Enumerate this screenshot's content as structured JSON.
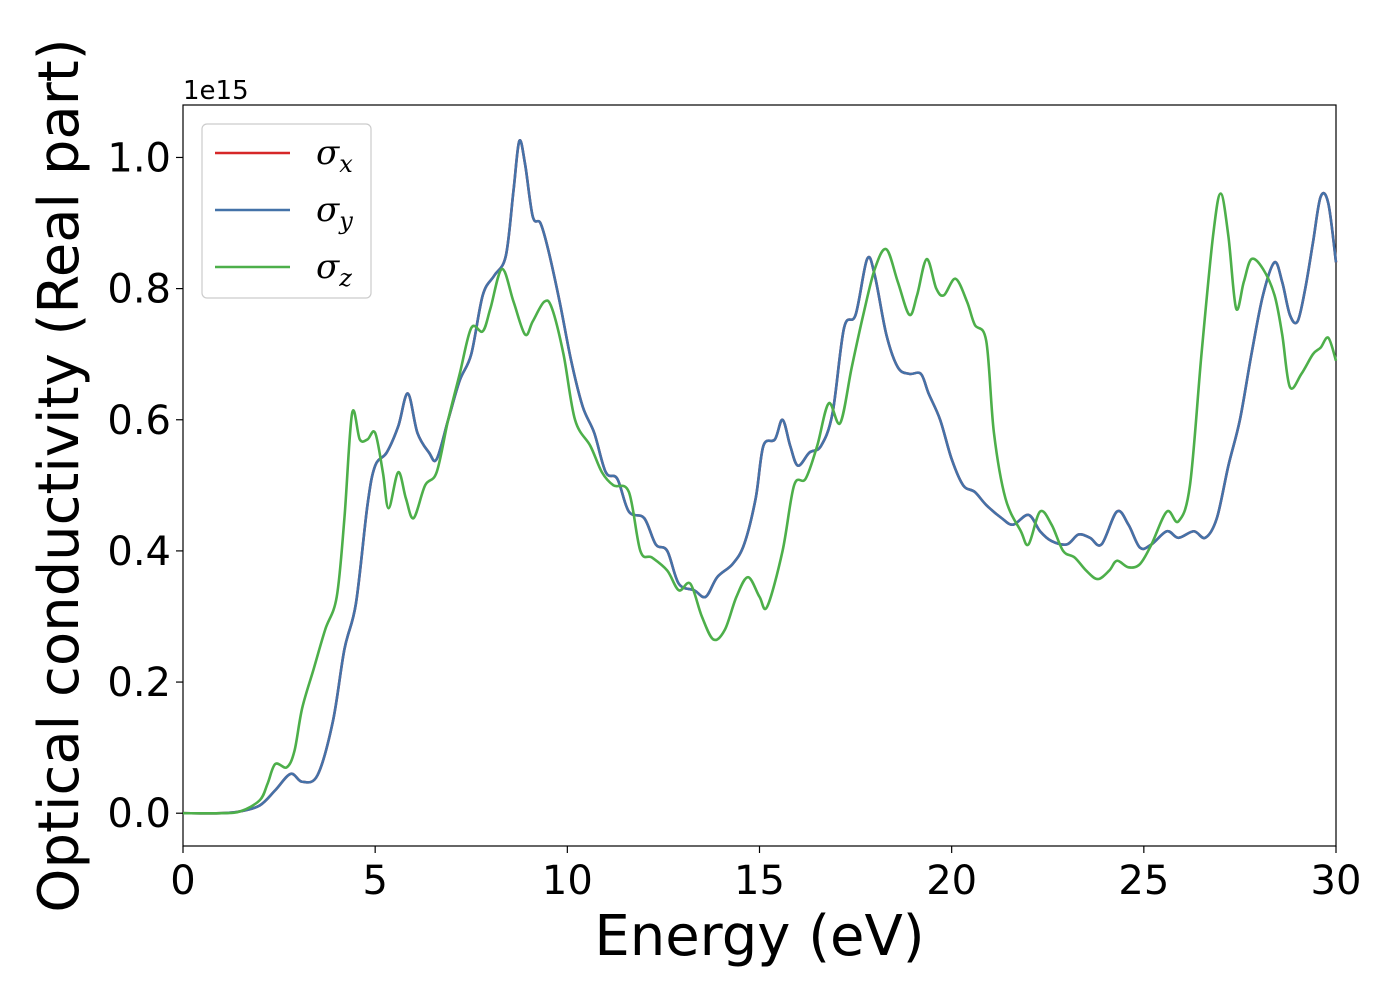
{
  "chart_data": {
    "type": "line",
    "title": "",
    "xlabel": "Energy (eV)",
    "ylabel": "Optical conductivity (Real part)",
    "y_offset_label": "1e15",
    "xlim": [
      0,
      30
    ],
    "ylim": [
      -0.05,
      1.08
    ],
    "x_ticks": [
      0,
      5,
      10,
      15,
      20,
      25,
      30
    ],
    "x_tick_labels": [
      "0",
      "5",
      "10",
      "15",
      "20",
      "25",
      "30"
    ],
    "y_ticks": [
      0.0,
      0.2,
      0.4,
      0.6,
      0.8,
      1.0
    ],
    "y_tick_labels": [
      "0.0",
      "0.2",
      "0.4",
      "0.6",
      "0.8",
      "1.0"
    ],
    "grid": false,
    "legend_position": "top-left",
    "series": [
      {
        "name": "σx",
        "symbol": "σ",
        "subscript": "x",
        "color": "#d62728",
        "points": [
          [
            0,
            0
          ],
          [
            1,
            0
          ],
          [
            1.5,
            0.003
          ],
          [
            2,
            0.012
          ],
          [
            2.4,
            0.035
          ],
          [
            2.8,
            0.06
          ],
          [
            3.1,
            0.048
          ],
          [
            3.5,
            0.058
          ],
          [
            3.9,
            0.14
          ],
          [
            4.2,
            0.25
          ],
          [
            4.5,
            0.32
          ],
          [
            4.8,
            0.47
          ],
          [
            5,
            0.53
          ],
          [
            5.3,
            0.55
          ],
          [
            5.6,
            0.59
          ],
          [
            5.85,
            0.64
          ],
          [
            6.1,
            0.58
          ],
          [
            6.4,
            0.55
          ],
          [
            6.6,
            0.54
          ],
          [
            6.9,
            0.6
          ],
          [
            7.2,
            0.66
          ],
          [
            7.5,
            0.7
          ],
          [
            7.8,
            0.79
          ],
          [
            8.1,
            0.82
          ],
          [
            8.4,
            0.85
          ],
          [
            8.6,
            0.95
          ],
          [
            8.75,
            1.025
          ],
          [
            8.9,
            0.99
          ],
          [
            9.1,
            0.91
          ],
          [
            9.3,
            0.9
          ],
          [
            9.5,
            0.86
          ],
          [
            9.8,
            0.78
          ],
          [
            10.1,
            0.69
          ],
          [
            10.4,
            0.62
          ],
          [
            10.7,
            0.58
          ],
          [
            11,
            0.52
          ],
          [
            11.3,
            0.51
          ],
          [
            11.6,
            0.46
          ],
          [
            12,
            0.45
          ],
          [
            12.3,
            0.41
          ],
          [
            12.6,
            0.4
          ],
          [
            12.9,
            0.35
          ],
          [
            13.3,
            0.34
          ],
          [
            13.6,
            0.33
          ],
          [
            13.9,
            0.36
          ],
          [
            14.3,
            0.38
          ],
          [
            14.6,
            0.41
          ],
          [
            14.9,
            0.48
          ],
          [
            15.1,
            0.56
          ],
          [
            15.4,
            0.57
          ],
          [
            15.6,
            0.6
          ],
          [
            15.8,
            0.56
          ],
          [
            16,
            0.53
          ],
          [
            16.3,
            0.55
          ],
          [
            16.6,
            0.56
          ],
          [
            16.9,
            0.61
          ],
          [
            17.2,
            0.74
          ],
          [
            17.5,
            0.76
          ],
          [
            17.8,
            0.845
          ],
          [
            18,
            0.82
          ],
          [
            18.3,
            0.73
          ],
          [
            18.6,
            0.68
          ],
          [
            18.9,
            0.67
          ],
          [
            19.2,
            0.67
          ],
          [
            19.4,
            0.64
          ],
          [
            19.7,
            0.6
          ],
          [
            20,
            0.54
          ],
          [
            20.3,
            0.5
          ],
          [
            20.6,
            0.49
          ],
          [
            20.9,
            0.47
          ],
          [
            21.3,
            0.45
          ],
          [
            21.6,
            0.44
          ],
          [
            22,
            0.455
          ],
          [
            22.3,
            0.43
          ],
          [
            22.6,
            0.415
          ],
          [
            23,
            0.41
          ],
          [
            23.3,
            0.425
          ],
          [
            23.6,
            0.42
          ],
          [
            23.9,
            0.41
          ],
          [
            24.3,
            0.46
          ],
          [
            24.6,
            0.44
          ],
          [
            24.9,
            0.405
          ],
          [
            25.2,
            0.41
          ],
          [
            25.6,
            0.43
          ],
          [
            25.9,
            0.42
          ],
          [
            26.3,
            0.43
          ],
          [
            26.6,
            0.42
          ],
          [
            26.9,
            0.45
          ],
          [
            27.2,
            0.53
          ],
          [
            27.5,
            0.6
          ],
          [
            27.8,
            0.7
          ],
          [
            28.1,
            0.79
          ],
          [
            28.4,
            0.84
          ],
          [
            28.6,
            0.81
          ],
          [
            28.8,
            0.76
          ],
          [
            29,
            0.75
          ],
          [
            29.2,
            0.8
          ],
          [
            29.4,
            0.87
          ],
          [
            29.6,
            0.94
          ],
          [
            29.8,
            0.93
          ],
          [
            30,
            0.84
          ]
        ]
      },
      {
        "name": "σy",
        "symbol": "σ",
        "subscript": "y",
        "color": "#4472a8",
        "points": [
          [
            0,
            0
          ],
          [
            1,
            0
          ],
          [
            1.5,
            0.003
          ],
          [
            2,
            0.012
          ],
          [
            2.4,
            0.035
          ],
          [
            2.8,
            0.06
          ],
          [
            3.1,
            0.048
          ],
          [
            3.5,
            0.058
          ],
          [
            3.9,
            0.14
          ],
          [
            4.2,
            0.25
          ],
          [
            4.5,
            0.32
          ],
          [
            4.8,
            0.47
          ],
          [
            5,
            0.53
          ],
          [
            5.3,
            0.55
          ],
          [
            5.6,
            0.59
          ],
          [
            5.85,
            0.64
          ],
          [
            6.1,
            0.58
          ],
          [
            6.4,
            0.55
          ],
          [
            6.6,
            0.54
          ],
          [
            6.9,
            0.6
          ],
          [
            7.2,
            0.66
          ],
          [
            7.5,
            0.7
          ],
          [
            7.8,
            0.79
          ],
          [
            8.1,
            0.82
          ],
          [
            8.4,
            0.85
          ],
          [
            8.6,
            0.95
          ],
          [
            8.75,
            1.025
          ],
          [
            8.9,
            0.99
          ],
          [
            9.1,
            0.91
          ],
          [
            9.3,
            0.9
          ],
          [
            9.5,
            0.86
          ],
          [
            9.8,
            0.78
          ],
          [
            10.1,
            0.69
          ],
          [
            10.4,
            0.62
          ],
          [
            10.7,
            0.58
          ],
          [
            11,
            0.52
          ],
          [
            11.3,
            0.51
          ],
          [
            11.6,
            0.46
          ],
          [
            12,
            0.45
          ],
          [
            12.3,
            0.41
          ],
          [
            12.6,
            0.4
          ],
          [
            12.9,
            0.35
          ],
          [
            13.3,
            0.34
          ],
          [
            13.6,
            0.33
          ],
          [
            13.9,
            0.36
          ],
          [
            14.3,
            0.38
          ],
          [
            14.6,
            0.41
          ],
          [
            14.9,
            0.48
          ],
          [
            15.1,
            0.56
          ],
          [
            15.4,
            0.57
          ],
          [
            15.6,
            0.6
          ],
          [
            15.8,
            0.56
          ],
          [
            16,
            0.53
          ],
          [
            16.3,
            0.55
          ],
          [
            16.6,
            0.56
          ],
          [
            16.9,
            0.61
          ],
          [
            17.2,
            0.74
          ],
          [
            17.5,
            0.76
          ],
          [
            17.8,
            0.845
          ],
          [
            18,
            0.82
          ],
          [
            18.3,
            0.73
          ],
          [
            18.6,
            0.68
          ],
          [
            18.9,
            0.67
          ],
          [
            19.2,
            0.67
          ],
          [
            19.4,
            0.64
          ],
          [
            19.7,
            0.6
          ],
          [
            20,
            0.54
          ],
          [
            20.3,
            0.5
          ],
          [
            20.6,
            0.49
          ],
          [
            20.9,
            0.47
          ],
          [
            21.3,
            0.45
          ],
          [
            21.6,
            0.44
          ],
          [
            22,
            0.455
          ],
          [
            22.3,
            0.43
          ],
          [
            22.6,
            0.415
          ],
          [
            23,
            0.41
          ],
          [
            23.3,
            0.425
          ],
          [
            23.6,
            0.42
          ],
          [
            23.9,
            0.41
          ],
          [
            24.3,
            0.46
          ],
          [
            24.6,
            0.44
          ],
          [
            24.9,
            0.405
          ],
          [
            25.2,
            0.41
          ],
          [
            25.6,
            0.43
          ],
          [
            25.9,
            0.42
          ],
          [
            26.3,
            0.43
          ],
          [
            26.6,
            0.42
          ],
          [
            26.9,
            0.45
          ],
          [
            27.2,
            0.53
          ],
          [
            27.5,
            0.6
          ],
          [
            27.8,
            0.7
          ],
          [
            28.1,
            0.79
          ],
          [
            28.4,
            0.84
          ],
          [
            28.6,
            0.81
          ],
          [
            28.8,
            0.76
          ],
          [
            29,
            0.75
          ],
          [
            29.2,
            0.8
          ],
          [
            29.4,
            0.87
          ],
          [
            29.6,
            0.94
          ],
          [
            29.8,
            0.93
          ],
          [
            30,
            0.84
          ]
        ]
      },
      {
        "name": "σz",
        "symbol": "σ",
        "subscript": "z",
        "color": "#4daf4a",
        "points": [
          [
            0,
            0
          ],
          [
            1,
            0
          ],
          [
            1.5,
            0.003
          ],
          [
            2,
            0.02
          ],
          [
            2.2,
            0.045
          ],
          [
            2.4,
            0.075
          ],
          [
            2.7,
            0.07
          ],
          [
            2.9,
            0.095
          ],
          [
            3.1,
            0.16
          ],
          [
            3.4,
            0.22
          ],
          [
            3.7,
            0.28
          ],
          [
            4,
            0.33
          ],
          [
            4.2,
            0.45
          ],
          [
            4.4,
            0.61
          ],
          [
            4.6,
            0.57
          ],
          [
            4.8,
            0.57
          ],
          [
            5,
            0.58
          ],
          [
            5.2,
            0.52
          ],
          [
            5.35,
            0.465
          ],
          [
            5.6,
            0.52
          ],
          [
            5.8,
            0.48
          ],
          [
            6,
            0.45
          ],
          [
            6.3,
            0.5
          ],
          [
            6.6,
            0.52
          ],
          [
            6.9,
            0.6
          ],
          [
            7.2,
            0.67
          ],
          [
            7.5,
            0.74
          ],
          [
            7.8,
            0.735
          ],
          [
            8,
            0.77
          ],
          [
            8.3,
            0.83
          ],
          [
            8.6,
            0.78
          ],
          [
            8.9,
            0.73
          ],
          [
            9.1,
            0.75
          ],
          [
            9.4,
            0.78
          ],
          [
            9.6,
            0.77
          ],
          [
            9.9,
            0.7
          ],
          [
            10.2,
            0.6
          ],
          [
            10.6,
            0.56
          ],
          [
            10.9,
            0.52
          ],
          [
            11.2,
            0.5
          ],
          [
            11.6,
            0.49
          ],
          [
            11.9,
            0.4
          ],
          [
            12.2,
            0.39
          ],
          [
            12.6,
            0.37
          ],
          [
            12.9,
            0.34
          ],
          [
            13.2,
            0.35
          ],
          [
            13.5,
            0.3
          ],
          [
            13.8,
            0.265
          ],
          [
            14.1,
            0.28
          ],
          [
            14.4,
            0.33
          ],
          [
            14.7,
            0.36
          ],
          [
            15,
            0.33
          ],
          [
            15.2,
            0.315
          ],
          [
            15.6,
            0.4
          ],
          [
            15.9,
            0.5
          ],
          [
            16.2,
            0.51
          ],
          [
            16.5,
            0.56
          ],
          [
            16.8,
            0.625
          ],
          [
            17.1,
            0.595
          ],
          [
            17.4,
            0.68
          ],
          [
            17.7,
            0.76
          ],
          [
            18,
            0.83
          ],
          [
            18.3,
            0.86
          ],
          [
            18.6,
            0.81
          ],
          [
            18.9,
            0.76
          ],
          [
            19.1,
            0.79
          ],
          [
            19.35,
            0.845
          ],
          [
            19.6,
            0.8
          ],
          [
            19.8,
            0.79
          ],
          [
            20.1,
            0.815
          ],
          [
            20.4,
            0.78
          ],
          [
            20.6,
            0.745
          ],
          [
            20.9,
            0.72
          ],
          [
            21.1,
            0.58
          ],
          [
            21.4,
            0.48
          ],
          [
            21.8,
            0.43
          ],
          [
            22,
            0.41
          ],
          [
            22.3,
            0.46
          ],
          [
            22.6,
            0.44
          ],
          [
            22.9,
            0.4
          ],
          [
            23.2,
            0.39
          ],
          [
            23.5,
            0.37
          ],
          [
            23.8,
            0.357
          ],
          [
            24.1,
            0.37
          ],
          [
            24.3,
            0.385
          ],
          [
            24.6,
            0.375
          ],
          [
            24.9,
            0.38
          ],
          [
            25.2,
            0.41
          ],
          [
            25.6,
            0.46
          ],
          [
            25.9,
            0.445
          ],
          [
            26.2,
            0.5
          ],
          [
            26.5,
            0.7
          ],
          [
            26.8,
            0.88
          ],
          [
            27,
            0.945
          ],
          [
            27.2,
            0.88
          ],
          [
            27.4,
            0.77
          ],
          [
            27.6,
            0.81
          ],
          [
            27.8,
            0.845
          ],
          [
            28.1,
            0.83
          ],
          [
            28.4,
            0.79
          ],
          [
            28.6,
            0.73
          ],
          [
            28.8,
            0.65
          ],
          [
            29.1,
            0.67
          ],
          [
            29.4,
            0.7
          ],
          [
            29.6,
            0.71
          ],
          [
            29.8,
            0.725
          ],
          [
            30,
            0.69
          ]
        ]
      }
    ]
  }
}
